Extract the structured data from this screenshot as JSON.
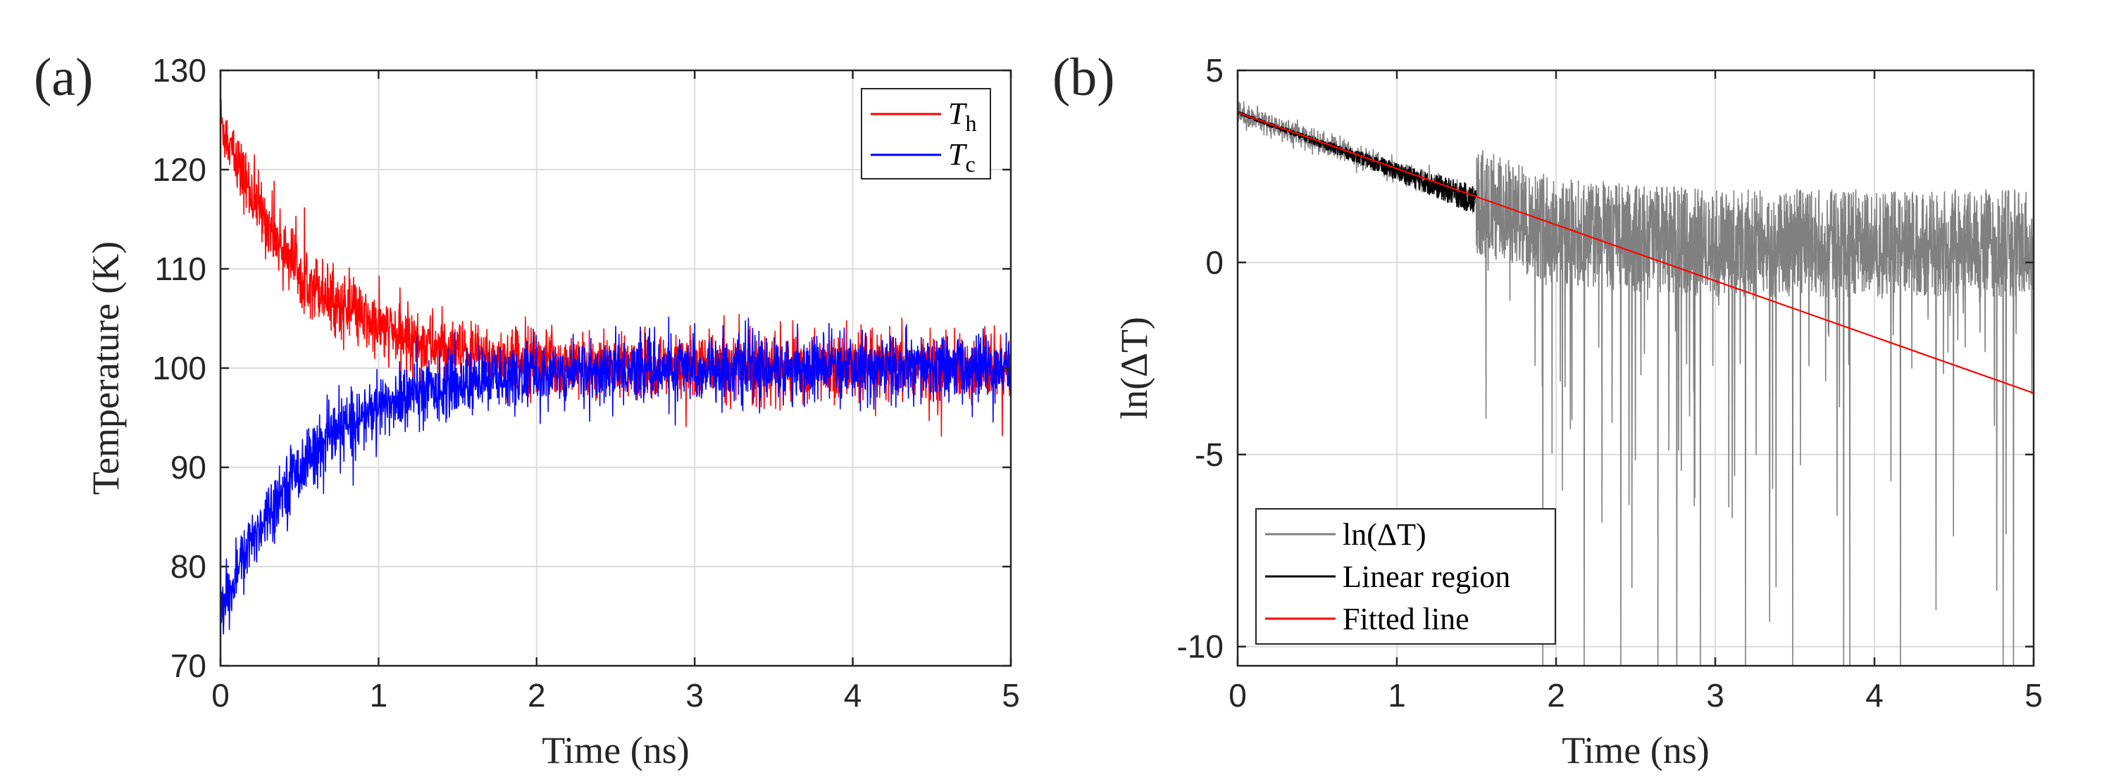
{
  "chart_data": [
    {
      "type": "line",
      "panel_label": "(a)",
      "title": "",
      "xlabel": "Time (ns)",
      "ylabel": "Temperature (K)",
      "xlim": [
        0,
        5
      ],
      "ylim": [
        70,
        130
      ],
      "xticks": [
        "0",
        "1",
        "2",
        "3",
        "4",
        "5"
      ],
      "yticks": [
        "70",
        "80",
        "90",
        "100",
        "110",
        "120",
        "130"
      ],
      "grid": true,
      "legend_position": "top-right",
      "series": [
        {
          "name": "T",
          "subscript": "h",
          "color": "#ff0000",
          "model": "exp_decay",
          "start": 125,
          "end": 100,
          "tau_ns": 0.55,
          "noise_k": 1.6,
          "x": [
            0,
            0.25,
            0.5,
            0.75,
            1.0,
            1.5,
            2.0,
            3.0,
            4.0,
            5.0
          ],
          "values": [
            125,
            118.8,
            114.1,
            110.3,
            107.4,
            103.6,
            101.3,
            100.1,
            100.0,
            100.0
          ]
        },
        {
          "name": "T",
          "subscript": "c",
          "color": "#0000ff",
          "model": "exp_decay",
          "start": 75,
          "end": 100,
          "tau_ns": 0.55,
          "noise_k": 1.6,
          "x": [
            0,
            0.25,
            0.5,
            0.75,
            1.0,
            1.5,
            2.0,
            3.0,
            4.0,
            5.0
          ],
          "values": [
            75,
            81.2,
            85.9,
            89.7,
            92.6,
            96.4,
            98.7,
            99.9,
            100.0,
            100.0
          ]
        }
      ]
    },
    {
      "type": "line",
      "panel_label": "(b)",
      "title": "",
      "xlabel": "Time (ns)",
      "ylabel": "ln(ΔT)",
      "xlim": [
        0,
        5
      ],
      "ylim": [
        -10.5,
        5
      ],
      "xticks": [
        "0",
        "1",
        "2",
        "3",
        "4",
        "5"
      ],
      "yticks": [
        "-10",
        "-5",
        "0",
        "5"
      ],
      "grid": true,
      "legend_position": "bottom-left",
      "series": [
        {
          "name": "ln(ΔT)",
          "color": "#808080",
          "model": "noisy_log",
          "x": [
            0,
            1.0,
            1.5,
            2.0,
            3.0,
            4.0,
            5.0
          ],
          "values": [
            3.9,
            2.4,
            1.6,
            0.8,
            0.5,
            0.5,
            0.5
          ],
          "noise_band": 1.4,
          "spike_min": -10.5
        },
        {
          "name": "Linear region",
          "color": "#000000",
          "model": "linear_noisy",
          "x": [
            0,
            1.5
          ],
          "values": [
            3.9,
            1.6
          ],
          "noise_band": 0.35
        },
        {
          "name": "Fitted line",
          "color": "#ff0000",
          "model": "line",
          "x": [
            0,
            5
          ],
          "values": [
            3.9,
            -3.4
          ]
        }
      ]
    }
  ]
}
